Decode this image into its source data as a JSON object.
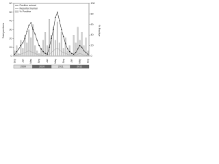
{
  "chart_data": {
    "type": "line",
    "y_label": "Total positives",
    "y2_label": "% Positive",
    "categories": [
      "Sep",
      null,
      null,
      null,
      "Jan",
      null,
      null,
      null,
      "May",
      null,
      null,
      null,
      "Sep",
      null,
      null,
      null,
      "Jan",
      null,
      null,
      null,
      "May",
      null,
      null,
      null,
      "Sep",
      null,
      null,
      null,
      "Jan",
      null,
      null,
      null,
      "May",
      null,
      null,
      null,
      "Sep"
    ],
    "year_labels": [
      "2009",
      "2010",
      "2011",
      "2012"
    ],
    "series": [
      {
        "name": "Positive animal",
        "color": "#000000",
        "kind": "line",
        "values": [
          2,
          5,
          8,
          12,
          15,
          20,
          28,
          35,
          38,
          30,
          25,
          18,
          12,
          8,
          5,
          3,
          2,
          10,
          20,
          30,
          44,
          50,
          40,
          30,
          22,
          14,
          8,
          5,
          3,
          2,
          4,
          8,
          12,
          10,
          6,
          4,
          2
        ]
      },
      {
        "name": "Reported human",
        "color": "#999999",
        "kind": "line",
        "values": [
          0,
          1,
          2,
          2,
          3,
          4,
          5,
          6,
          5,
          4,
          3,
          2,
          1,
          1,
          0,
          0,
          1,
          2,
          4,
          6,
          8,
          9,
          7,
          5,
          4,
          3,
          2,
          1,
          1,
          0,
          1,
          2,
          3,
          2,
          1,
          1,
          0
        ]
      },
      {
        "name": "% Positive",
        "color": "#cccccc",
        "kind": "bar",
        "axis": "y2",
        "values": [
          10,
          20,
          5,
          30,
          15,
          40,
          25,
          50,
          35,
          60,
          20,
          10,
          5,
          15,
          30,
          45,
          20,
          70,
          40,
          55,
          30,
          65,
          25,
          45,
          15,
          35,
          10,
          20,
          5,
          40,
          25,
          55,
          30,
          45,
          20,
          35,
          10
        ]
      }
    ],
    "ylim": [
      0,
      60
    ],
    "yticks": [
      0,
      10,
      20,
      30,
      40,
      50,
      60
    ],
    "y2lim": [
      0,
      100
    ],
    "y2ticks": [
      0,
      20,
      40,
      60,
      80,
      100
    ],
    "legend": "top-left"
  }
}
